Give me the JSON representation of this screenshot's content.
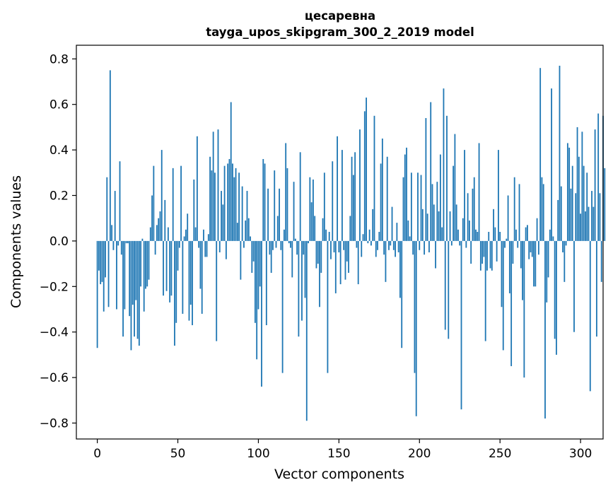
{
  "chart_data": {
    "type": "bar",
    "title_line1": "цесаревна",
    "title_line2": "tayga_upos_skipgram_300_2_2019 model",
    "xlabel": "Vector components",
    "ylabel": "Components values",
    "xlim": [
      -13,
      314
    ],
    "ylim": [
      -0.87,
      0.86
    ],
    "xticks": [
      0,
      50,
      100,
      150,
      200,
      250,
      300
    ],
    "xtick_labels": [
      "0",
      "50",
      "100",
      "150",
      "200",
      "250",
      "300"
    ],
    "yticks": [
      -0.8,
      -0.6,
      -0.4,
      -0.2,
      0.0,
      0.2,
      0.4,
      0.6,
      0.8
    ],
    "ytick_labels": [
      "−0.8",
      "−0.6",
      "−0.4",
      "−0.2",
      "0.0",
      "0.2",
      "0.4",
      "0.6",
      "0.8"
    ],
    "bar_color": "#1f77b4",
    "values": [
      -0.47,
      -0.13,
      -0.19,
      -0.18,
      -0.31,
      -0.16,
      0.28,
      -0.29,
      0.75,
      0.07,
      -0.04,
      0.22,
      -0.3,
      -0.02,
      0.35,
      -0.06,
      -0.42,
      -0.3,
      -0.01,
      -0.01,
      -0.33,
      -0.48,
      -0.28,
      -0.42,
      -0.26,
      -0.43,
      -0.46,
      -0.2,
      0.01,
      -0.31,
      -0.21,
      -0.2,
      -0.17,
      0.06,
      0.2,
      0.33,
      -0.06,
      0.07,
      0.1,
      0.13,
      0.4,
      -0.24,
      0.18,
      -0.22,
      0.06,
      -0.27,
      -0.24,
      0.32,
      -0.46,
      -0.36,
      -0.13,
      -0.03,
      0.33,
      -0.32,
      0.02,
      0.05,
      0.12,
      -0.35,
      -0.28,
      -0.37,
      0.27,
      0.06,
      0.46,
      -0.03,
      -0.21,
      -0.32,
      0.05,
      -0.07,
      -0.07,
      0.03,
      0.37,
      0.31,
      0.48,
      0.3,
      -0.44,
      0.49,
      -0.05,
      0.22,
      0.16,
      0.33,
      -0.08,
      0.34,
      0.36,
      0.61,
      0.34,
      0.28,
      0.32,
      0.08,
      0.3,
      -0.17,
      0.24,
      -0.03,
      0.09,
      0.22,
      0.1,
      0.02,
      -0.14,
      -0.09,
      -0.36,
      -0.52,
      -0.3,
      -0.2,
      -0.64,
      0.36,
      0.34,
      -0.37,
      0.23,
      -0.06,
      -0.14,
      -0.04,
      0.31,
      -0.03,
      0.11,
      0.23,
      -0.04,
      -0.58,
      0.05,
      0.43,
      0.32,
      -0.01,
      -0.03,
      -0.16,
      0.26,
      0.01,
      -0.06,
      -0.42,
      0.39,
      -0.35,
      -0.06,
      -0.25,
      -0.79,
      -0.01,
      0.28,
      0.17,
      0.27,
      0.11,
      -0.12,
      -0.1,
      -0.29,
      -0.14,
      0.1,
      0.3,
      0.05,
      -0.58,
      0.04,
      -0.08,
      0.35,
      -0.05,
      -0.23,
      0.46,
      -0.05,
      -0.19,
      0.4,
      -0.04,
      -0.17,
      -0.09,
      -0.14,
      0.11,
      0.37,
      0.29,
      0.39,
      -0.03,
      -0.19,
      0.49,
      -0.07,
      0.03,
      0.57,
      0.63,
      -0.01,
      0.05,
      -0.02,
      0.14,
      0.55,
      -0.07,
      -0.04,
      0.04,
      0.34,
      0.45,
      -0.06,
      -0.18,
      0.37,
      -0.04,
      -0.02,
      0.15,
      -0.04,
      -0.07,
      0.08,
      -0.05,
      -0.25,
      -0.47,
      0.28,
      0.38,
      0.41,
      0.09,
      0.02,
      0.3,
      -0.06,
      -0.58,
      -0.77,
      0.3,
      -0.04,
      0.29,
      0.14,
      -0.06,
      0.54,
      0.12,
      -0.05,
      0.61,
      0.25,
      0.16,
      -0.12,
      0.26,
      0.13,
      0.38,
      0.06,
      0.67,
      -0.39,
      0.55,
      -0.43,
      0.13,
      -0.02,
      0.33,
      0.47,
      0.16,
      0.05,
      -0.02,
      -0.74,
      0.1,
      0.4,
      -0.03,
      0.21,
      0.09,
      -0.1,
      0.23,
      0.28,
      0.05,
      0.04,
      0.43,
      -0.13,
      -0.1,
      -0.07,
      -0.44,
      -0.13,
      0.04,
      -0.12,
      -0.13,
      0.14,
      0.06,
      -0.09,
      0.4,
      0.04,
      -0.29,
      -0.48,
      -0.03,
      0.01,
      0.2,
      -0.23,
      -0.55,
      -0.1,
      0.28,
      0.05,
      -0.03,
      0.25,
      -0.12,
      -0.26,
      -0.6,
      0.06,
      0.07,
      -0.08,
      -0.05,
      -0.07,
      -0.2,
      -0.2,
      0.1,
      -0.06,
      0.76,
      0.28,
      0.25,
      -0.78,
      -0.27,
      -0.16,
      0.05,
      0.67,
      0.02,
      -0.43,
      -0.5,
      0.18,
      0.77,
      0.24,
      -0.05,
      -0.18,
      -0.02,
      0.43,
      0.41,
      0.23,
      0.33,
      -0.4,
      0.21,
      0.5,
      0.37,
      0.12,
      0.48,
      0.33,
      0.13,
      0.3,
      0.15,
      -0.66,
      0.22,
      0.15,
      0.49,
      -0.42,
      0.56,
      0.21,
      -0.18,
      0.55,
      0.32
    ]
  }
}
